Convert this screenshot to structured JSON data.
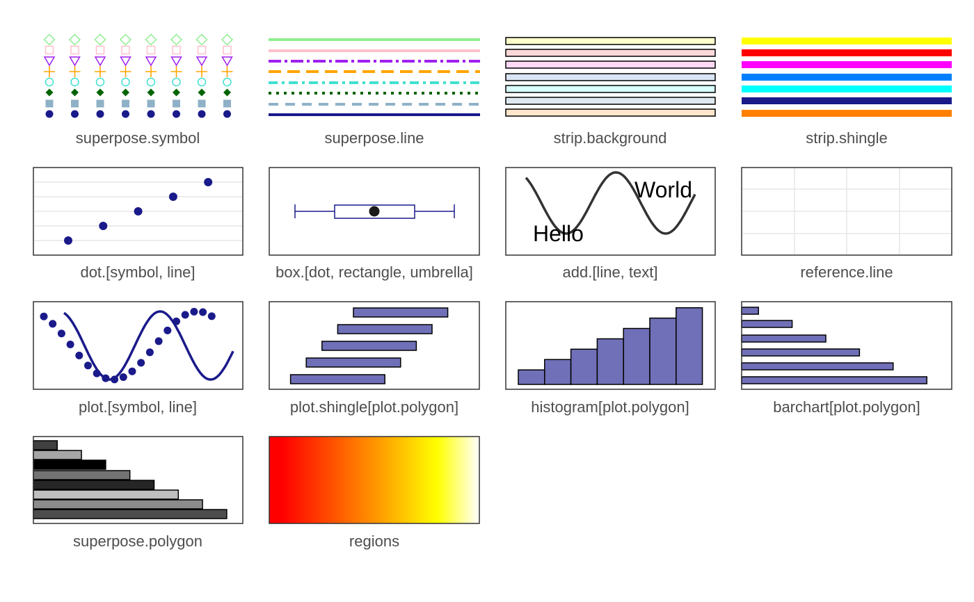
{
  "panels": {
    "superpose_symbol": {
      "label": "superpose.symbol"
    },
    "superpose_line": {
      "label": "superpose.line"
    },
    "strip_background": {
      "label": "strip.background"
    },
    "strip_shingle": {
      "label": "strip.shingle"
    },
    "dot": {
      "label": "dot.[symbol, line]"
    },
    "box": {
      "label": "box.[dot, rectangle, umbrella]"
    },
    "add": {
      "label": "add.[line, text]",
      "text_hello": "Hello",
      "text_world": "World"
    },
    "reference_line": {
      "label": "reference.line"
    },
    "plot": {
      "label": "plot.[symbol, line]"
    },
    "plot_shingle": {
      "label": "plot.shingle[plot.polygon]"
    },
    "histogram": {
      "label": "histogram[plot.polygon]"
    },
    "barchart": {
      "label": "barchart[plot.polygon]"
    },
    "superpose_polygon": {
      "label": "superpose.polygon"
    },
    "regions": {
      "label": "regions"
    }
  },
  "colors": {
    "superpose_symbol": [
      "#1a1a8b",
      "#8fb1c7",
      "#006400",
      "#40e0d0",
      "#ffa500",
      "#a020f0",
      "#ffc0cb",
      "#90ee90"
    ],
    "superpose_line": [
      "#90ee90",
      "#ffc0cb",
      "#a020f0",
      "#ffa500",
      "#40e0d0",
      "#006400",
      "#8fb1c7",
      "#1a1a8b"
    ],
    "strip_background": [
      "#ffffcc",
      "#ffd9d9",
      "#ffd9f5",
      "#d9e4f5",
      "#d9ffff",
      "#dde8f0",
      "#ffe6cc"
    ],
    "strip_shingle": [
      "#ffff00",
      "#ff0000",
      "#ff00ff",
      "#0080ff",
      "#00ffff",
      "#1a1a8b",
      "#ff8000"
    ],
    "polygon_fill": "#7070b8",
    "symbol": "#1a1a8b",
    "superpose_polygon": [
      "#4d4d4d",
      "#8c8c8c",
      "#bfbfbf",
      "#262626",
      "#737373",
      "#000000",
      "#a6a6a6",
      "#404040"
    ],
    "regions": [
      "#ff0000",
      "#ffa500",
      "#ffff00",
      "#ffffff"
    ]
  },
  "chart_data": {
    "plot_shingle": {
      "type": "bar",
      "intervals": [
        [
          1,
          7
        ],
        [
          2,
          8
        ],
        [
          3,
          9
        ],
        [
          4,
          10
        ],
        [
          5,
          11
        ]
      ]
    },
    "histogram": {
      "type": "bar",
      "values": [
        1,
        2,
        3,
        4,
        5,
        6,
        7
      ]
    },
    "barchart": {
      "type": "bar",
      "values": [
        1,
        3,
        5,
        7,
        9,
        11
      ]
    },
    "superpose_polygon": {
      "type": "bar",
      "values": [
        8,
        7,
        6,
        5,
        4,
        3,
        2,
        1
      ]
    },
    "dot": {
      "type": "scatter",
      "values": [
        1,
        2,
        3,
        4,
        5
      ]
    }
  }
}
